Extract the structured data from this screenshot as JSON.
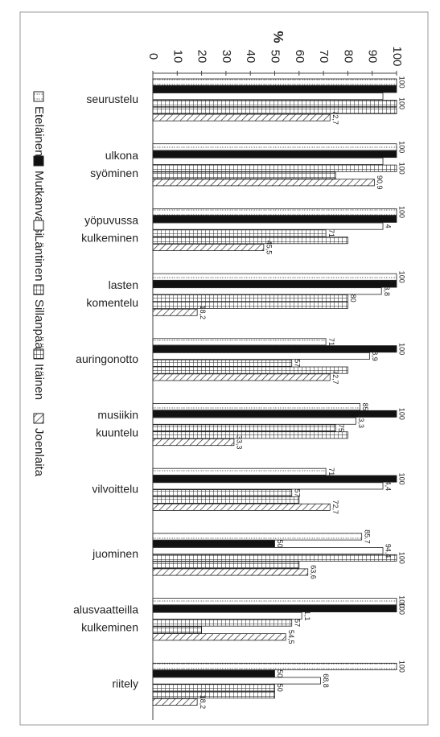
{
  "chart_data": {
    "type": "bar",
    "orientation": "horizontal",
    "ylabel": "%",
    "xlim": [
      0,
      100
    ],
    "ticks": [
      "0",
      "10",
      "20",
      "30",
      "40",
      "50",
      "60",
      "70",
      "80",
      "90",
      "100"
    ],
    "legend_position": "bottom",
    "categories": [
      [
        "seurustelu"
      ],
      [
        "ulkona",
        "syöminen"
      ],
      [
        "yöpuvussa",
        "kulkeminen"
      ],
      [
        "lasten",
        "komentelu"
      ],
      [
        "auringonotto"
      ],
      [
        "musiikin",
        "kuuntelu"
      ],
      [
        "vilvoittelu"
      ],
      [
        "juominen"
      ],
      [
        "alusvaatteilla",
        "kulkeminen"
      ],
      [
        "riitely"
      ]
    ],
    "series": [
      {
        "name": "Eteläinen",
        "pattern": "dotted",
        "values": [
          100,
          100,
          100,
          100,
          71,
          85,
          71,
          85.7,
          100,
          100
        ],
        "labels": [
          "100",
          "100",
          "100",
          "100",
          "71",
          "85",
          "71",
          "85.7",
          "100",
          "100"
        ]
      },
      {
        "name": "Mutkanvarsi",
        "pattern": "solid",
        "values": [
          100,
          100,
          100,
          100,
          100,
          100,
          100,
          50,
          100,
          50
        ],
        "labels": [
          "",
          "",
          "",
          "",
          "100",
          "100",
          "100",
          "50",
          "100",
          "50"
        ]
      },
      {
        "name": "Läntinen",
        "pattern": "blank",
        "values": [
          94.4,
          94.4,
          94.4,
          93.8,
          88.9,
          83.3,
          94.4,
          94.4,
          61.1,
          68.8
        ],
        "labels": [
          "",
          "",
          "4",
          "3,8",
          "8,9",
          "33,3",
          "4,4",
          "94,4",
          "1,1",
          "68,8"
        ]
      },
      {
        "name": "Sillanpää",
        "pattern": "grid",
        "values": [
          100,
          100,
          71,
          80,
          57,
          75,
          57,
          100,
          57,
          50
        ],
        "labels": [
          "100",
          "100",
          "71",
          "80",
          "57",
          "75",
          "57",
          "100",
          "57",
          "50"
        ]
      },
      {
        "name": "Itäinen",
        "pattern": "grid",
        "values": [
          100,
          75,
          80,
          80,
          80,
          80,
          60,
          60,
          20,
          50
        ],
        "labels": [
          "",
          "",
          "",
          "",
          "",
          "",
          "",
          "",
          "",
          ""
        ]
      },
      {
        "name": "Joenlaita",
        "pattern": "hatched",
        "values": [
          72.7,
          90.9,
          45.5,
          18.2,
          72.7,
          33.3,
          72.7,
          63.6,
          54.5,
          18.2
        ],
        "labels": [
          "72,7",
          "90,9",
          "45,5",
          "18,2",
          "72,7",
          "33,3",
          "72,7",
          "63,6",
          "54,5",
          "18,2"
        ]
      }
    ]
  }
}
